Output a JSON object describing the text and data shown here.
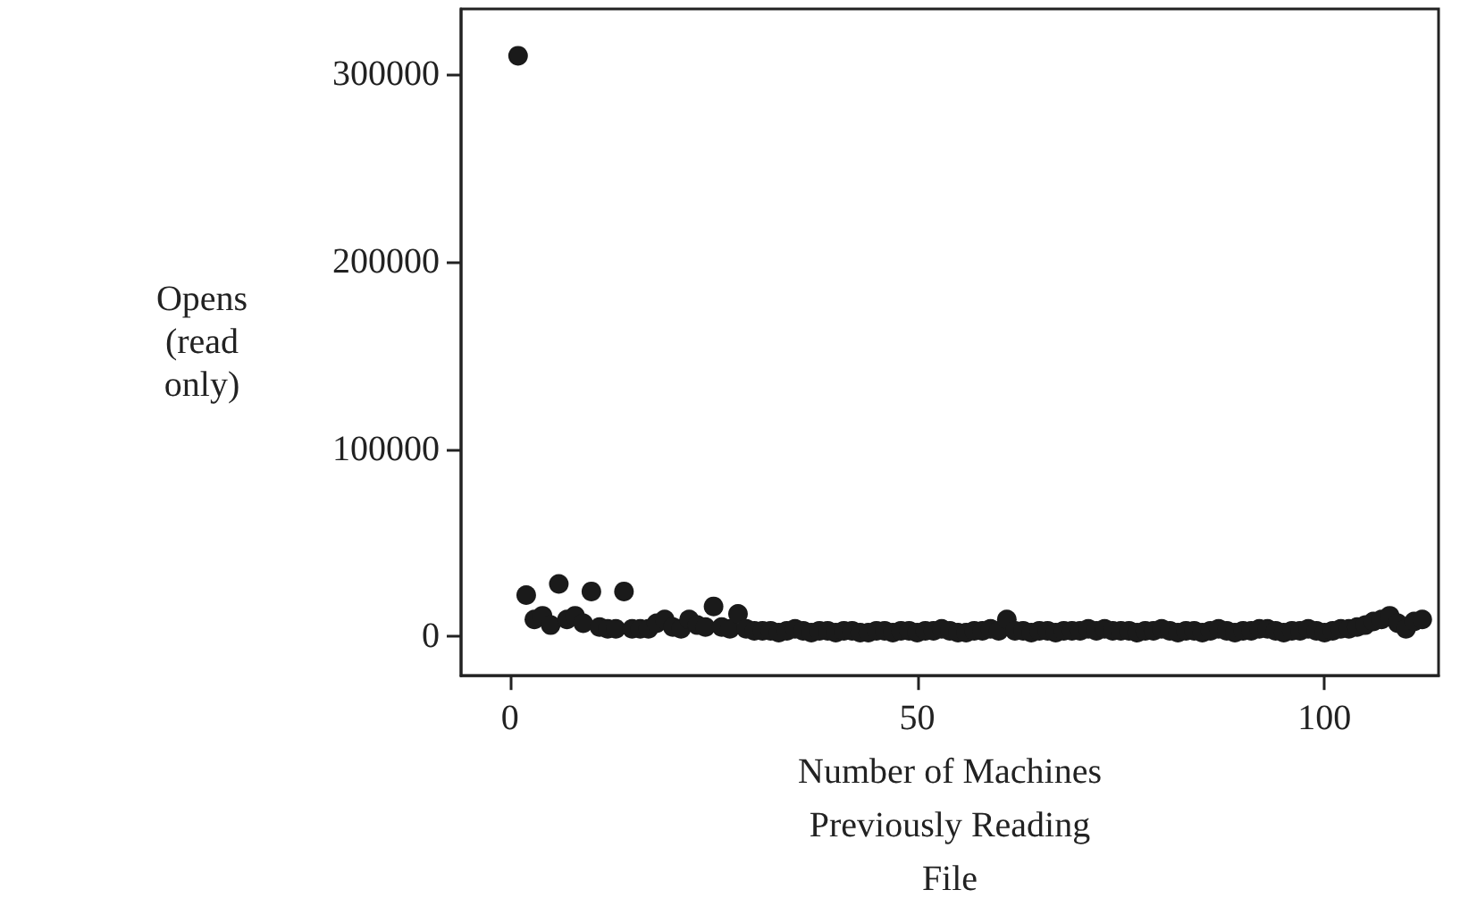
{
  "chart_data": {
    "type": "scatter",
    "xlabel": "Number of Machines Previously Reading File",
    "ylabel": "Opens (read only)",
    "x": [
      1,
      2,
      3,
      4,
      5,
      6,
      7,
      8,
      9,
      10,
      11,
      12,
      13,
      14,
      15,
      16,
      17,
      18,
      19,
      20,
      21,
      22,
      23,
      24,
      25,
      26,
      27,
      28,
      29,
      30,
      31,
      32,
      33,
      34,
      35,
      36,
      37,
      38,
      39,
      40,
      41,
      42,
      43,
      44,
      45,
      46,
      47,
      48,
      49,
      50,
      51,
      52,
      53,
      54,
      55,
      56,
      57,
      58,
      59,
      60,
      61,
      62,
      63,
      64,
      65,
      66,
      67,
      68,
      69,
      70,
      71,
      72,
      73,
      74,
      75,
      76,
      77,
      78,
      79,
      80,
      81,
      82,
      83,
      84,
      85,
      86,
      87,
      88,
      89,
      90,
      91,
      92,
      93,
      94,
      95,
      96,
      97,
      98,
      99,
      100,
      101,
      102,
      103,
      104,
      105,
      106,
      107,
      108,
      109,
      110,
      111,
      112
    ],
    "series": [
      {
        "color": "#1a1a1a",
        "values": [
          310000,
          22000,
          9000,
          11000,
          6000,
          28000,
          9000,
          11000,
          7000,
          24000,
          5000,
          4000,
          4000,
          24000,
          4000,
          4000,
          4000,
          7000,
          9000,
          5000,
          4000,
          9000,
          6000,
          5000,
          16000,
          5000,
          4000,
          12000,
          4000,
          3000,
          3000,
          3000,
          2000,
          3000,
          4000,
          3000,
          2000,
          3000,
          3000,
          2000,
          3000,
          3000,
          2000,
          2000,
          3000,
          3000,
          2000,
          3000,
          3000,
          2000,
          3000,
          3000,
          4000,
          3000,
          2000,
          2000,
          3000,
          3000,
          4000,
          3000,
          9000,
          3000,
          3000,
          2000,
          3000,
          3000,
          2000,
          3000,
          3000,
          3000,
          4000,
          3000,
          4000,
          3000,
          3000,
          3000,
          2000,
          3000,
          3000,
          4000,
          3000,
          2000,
          3000,
          3000,
          2000,
          3000,
          4000,
          3000,
          2000,
          3000,
          3000,
          4000,
          4000,
          3000,
          2000,
          3000,
          3000,
          4000,
          3000,
          2000,
          3000,
          4000,
          4000,
          5000,
          6000,
          8000,
          9000,
          11000,
          7000,
          4000,
          8000,
          9000
        ]
      }
    ],
    "xlim": [
      -6,
      114
    ],
    "ylim": [
      -21000,
      335000
    ],
    "xticks": [
      0,
      50,
      100
    ],
    "yticks": [
      0,
      100000,
      200000,
      300000
    ],
    "marker": "circle",
    "grid": false
  }
}
